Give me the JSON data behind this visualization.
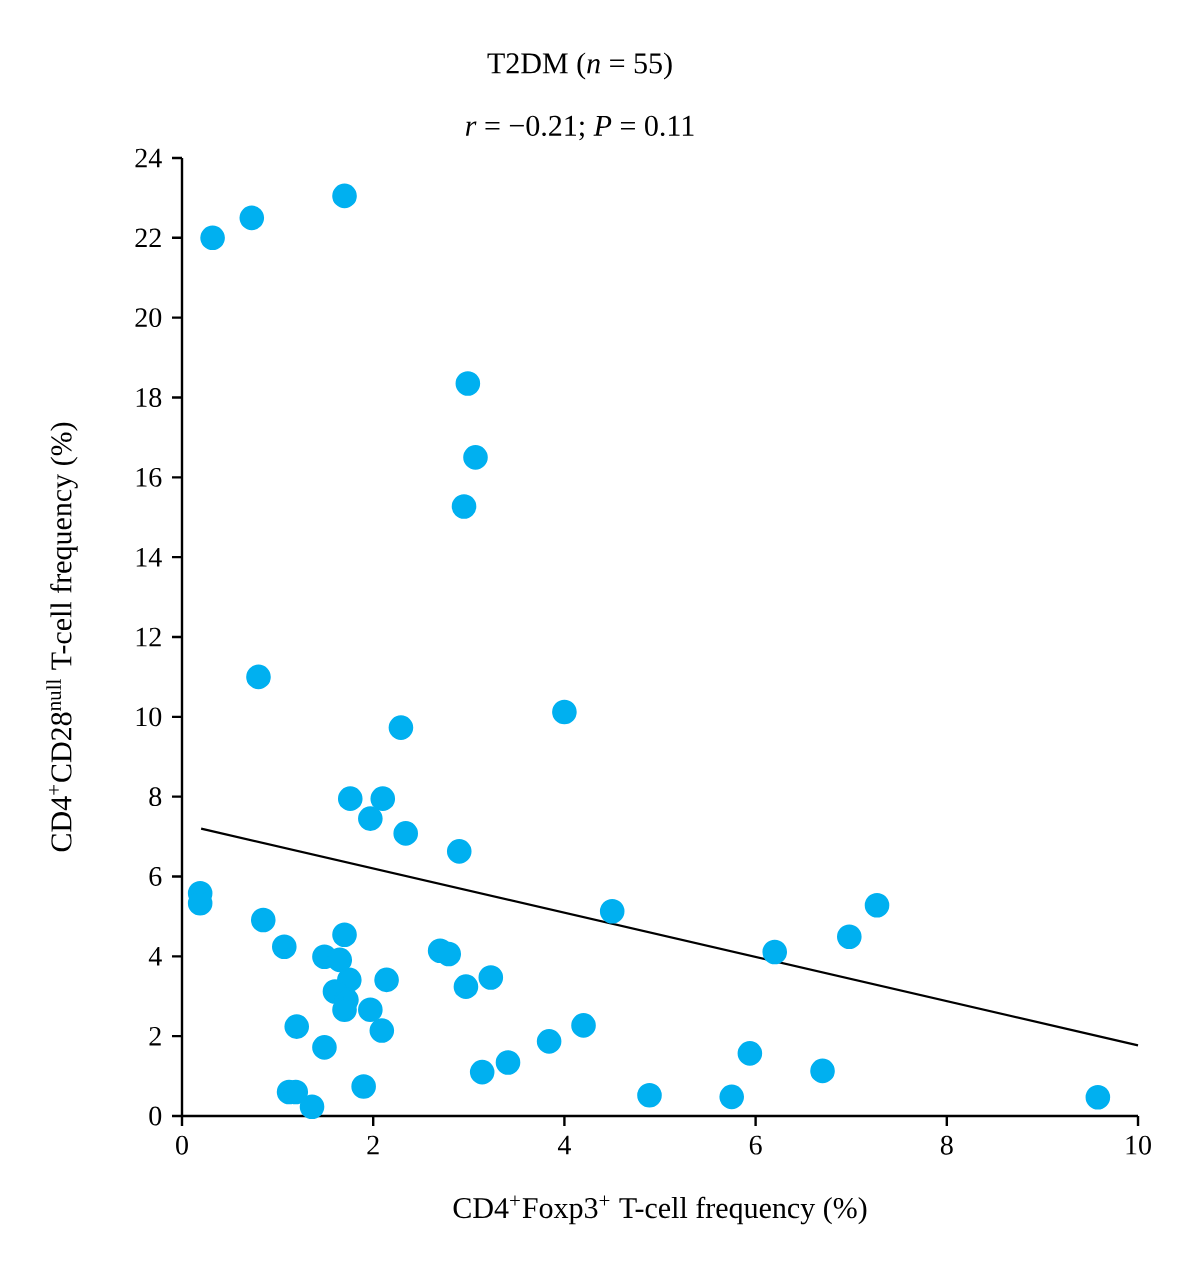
{
  "chart_data": {
    "type": "scatter",
    "title": "T2DM (*n* = 55)",
    "subtitle": "*r* = −0.21; *P* = 0.11",
    "xlabel": "CD4$^{+}$Foxp3$^{+}$ T-cell frequency (%)",
    "ylabel": "CD4$^{+}$CD28$^{null}$ T-cell frequency (%)",
    "xlim": [
      0,
      10
    ],
    "xticks": [
      0,
      2,
      4,
      6,
      8,
      10
    ],
    "ylim": [
      0,
      24
    ],
    "yticks": [
      0,
      2,
      4,
      6,
      8,
      10,
      12,
      14,
      16,
      18,
      20,
      22,
      24
    ],
    "grid": false,
    "series": [
      {
        "color": "#00b0f0",
        "marker": "circle",
        "x": [
          0.32,
          0.73,
          1.7,
          2.99,
          3.07,
          2.95,
          0.8,
          2.29,
          1.76,
          2.1,
          1.97,
          2.34,
          2.9,
          0.19,
          0.19,
          0.85,
          1.07,
          1.7,
          1.49,
          1.65,
          1.75,
          1.6,
          1.72,
          1.7,
          2.14,
          1.97,
          2.09,
          1.2,
          1.49,
          1.12,
          1.19,
          1.36,
          1.9,
          2.7,
          2.79,
          2.97,
          3.23,
          3.14,
          3.41,
          3.84,
          4.0,
          4.5,
          6.2,
          6.98,
          7.27,
          4.2,
          4.89,
          5.75,
          5.94,
          6.7,
          9.58
        ],
        "values": [
          22.0,
          22.5,
          23.05,
          18.35,
          16.5,
          15.27,
          11.0,
          9.73,
          7.95,
          7.95,
          7.45,
          7.08,
          6.63,
          5.58,
          5.33,
          4.91,
          4.24,
          4.54,
          3.99,
          3.91,
          3.41,
          3.12,
          2.91,
          2.66,
          3.41,
          2.66,
          2.14,
          2.24,
          1.72,
          0.6,
          0.6,
          0.23,
          0.74,
          4.14,
          4.06,
          3.24,
          3.47,
          1.1,
          1.34,
          1.87,
          10.12,
          5.13,
          4.11,
          4.49,
          5.28,
          2.27,
          0.52,
          0.48,
          1.57,
          1.13,
          0.47
        ]
      },
      {
        "type": "line",
        "color": "#000000",
        "marker": "none",
        "x": [
          0.2,
          10
        ],
        "values": [
          7.2,
          1.77
        ]
      }
    ]
  }
}
